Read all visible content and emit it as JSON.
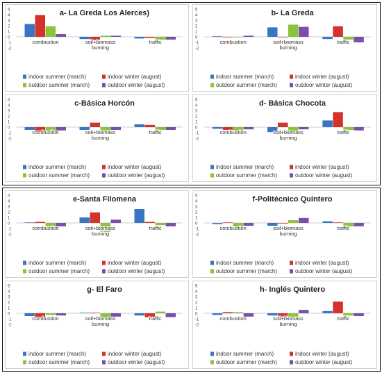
{
  "colors": {
    "indoor_summer": "#3a74c4",
    "indoor_winter": "#d6322c",
    "outdoor_summer": "#8ac43a",
    "outdoor_winter": "#7a4fa8"
  },
  "chart_data": [
    {
      "type": "bar",
      "title": "a- La Greda Los Alerces)",
      "categories": [
        "combustion",
        "soil+biomass burning",
        "traffic"
      ],
      "series": [
        {
          "name": "indoor summer (march)",
          "values": [
            2.3,
            -0.4,
            -0.3
          ]
        },
        {
          "name": "indoor winter (august)",
          "values": [
            3.9,
            -0.6,
            -0.2
          ]
        },
        {
          "name": "outdoor summer (march)",
          "values": [
            1.9,
            0.2,
            -0.5
          ]
        },
        {
          "name": "outdoor winter (august)",
          "values": [
            0.5,
            0.2,
            -0.5
          ]
        }
      ],
      "yticks": [
        "5",
        "4",
        "3",
        "2",
        "1",
        "0",
        "-1",
        "-2"
      ],
      "ylim": [
        -2,
        5
      ],
      "legend": "bottom"
    },
    {
      "type": "bar",
      "title": "b- La Greda",
      "categories": [
        "combustion",
        "soil+biomass burning",
        "traffic"
      ],
      "series": [
        {
          "name": "indoor summer (march)",
          "values": [
            0.1,
            1.7,
            -0.4
          ]
        },
        {
          "name": "indoor winter (august)",
          "values": [
            -0.1,
            -0.1,
            1.9
          ]
        },
        {
          "name": "outdoor summer (march)",
          "values": [
            -0.1,
            2.2,
            -0.5
          ]
        },
        {
          "name": "outdoor winter (august)",
          "values": [
            0.2,
            1.8,
            -1.0
          ]
        }
      ],
      "yticks": [
        "5",
        "4",
        "3",
        "2",
        "1",
        "0",
        "-1",
        "-2"
      ],
      "ylim": [
        -2,
        5
      ],
      "legend": "bottom"
    },
    {
      "type": "bar",
      "title": "c-Básica Horcón",
      "categories": [
        "combustion",
        "soil+biomass burning",
        "traffic"
      ],
      "series": [
        {
          "name": "indoor summer (march)",
          "values": [
            -0.5,
            -0.5,
            0.5
          ]
        },
        {
          "name": "indoor winter (august)",
          "values": [
            -0.8,
            0.8,
            0.4
          ]
        },
        {
          "name": "outdoor summer (march)",
          "values": [
            -1.0,
            -0.6,
            -0.5
          ]
        },
        {
          "name": "outdoor winter (august)",
          "values": [
            -0.6,
            -0.5,
            -0.5
          ]
        }
      ],
      "yticks": [
        "5",
        "4",
        "3",
        "2",
        "1",
        "0",
        "-1",
        "-2"
      ],
      "ylim": [
        -2,
        5
      ],
      "legend": "bottom"
    },
    {
      "type": "bar",
      "title": "d- Básica Chocota",
      "categories": [
        "combustion",
        "soil+biomass burning",
        "traffic"
      ],
      "series": [
        {
          "name": "indoor summer (march)",
          "values": [
            -0.3,
            -0.9,
            1.2
          ]
        },
        {
          "name": "indoor winter (august)",
          "values": [
            -0.5,
            0.8,
            2.7
          ]
        },
        {
          "name": "outdoor summer (march)",
          "values": [
            -0.6,
            -1.2,
            -0.5
          ]
        },
        {
          "name": "outdoor winter (august)",
          "values": [
            -0.4,
            -0.4,
            -0.6
          ]
        }
      ],
      "yticks": [
        "5",
        "4",
        "3",
        "2",
        "1",
        "0",
        "-1",
        "-2"
      ],
      "ylim": [
        -2,
        5
      ],
      "legend": "bottom"
    },
    {
      "type": "bar",
      "title": "e-Santa Filomena",
      "categories": [
        "combustion",
        "soil+biomass burning",
        "traffic"
      ],
      "series": [
        {
          "name": "indoor summer (march)",
          "values": [
            0.1,
            1.0,
            2.5
          ]
        },
        {
          "name": "indoor winter (august)",
          "values": [
            0.2,
            1.9,
            0.2
          ]
        },
        {
          "name": "outdoor summer (march)",
          "values": [
            -0.6,
            -1.6,
            -0.4
          ]
        },
        {
          "name": "outdoor winter (august)",
          "values": [
            -0.6,
            0.6,
            -0.6
          ]
        }
      ],
      "yticks": [
        "5",
        "4",
        "3",
        "2",
        "1",
        "0",
        "-1",
        "-2"
      ],
      "ylim": [
        -2,
        5
      ],
      "legend": "bottom"
    },
    {
      "type": "bar",
      "title": "f-Politécnico Quintero",
      "categories": [
        "combustion",
        "soil+biomass burning",
        "traffic"
      ],
      "series": [
        {
          "name": "indoor summer (march)",
          "values": [
            -0.2,
            -0.5,
            0.3
          ]
        },
        {
          "name": "indoor winter (august)",
          "values": [
            0.1,
            -0.1,
            0.1
          ]
        },
        {
          "name": "outdoor summer (march)",
          "values": [
            -0.7,
            0.5,
            -0.6
          ]
        },
        {
          "name": "outdoor winter (august)",
          "values": [
            -0.5,
            0.9,
            -0.6
          ]
        }
      ],
      "yticks": [
        "5",
        "4",
        "3",
        "2",
        "1",
        "0",
        "-1",
        "-2"
      ],
      "ylim": [
        -2,
        5
      ],
      "legend": "bottom"
    },
    {
      "type": "bar",
      "title": "g- El Faro",
      "categories": [
        "combustion",
        "soil+biomass burning",
        "traffic"
      ],
      "series": [
        {
          "name": "indoor summer (march)",
          "values": [
            -0.5,
            0.1,
            -0.4
          ]
        },
        {
          "name": "indoor winter (august)",
          "values": [
            -0.8,
            0.1,
            -0.7
          ]
        },
        {
          "name": "outdoor summer (march)",
          "values": [
            -0.3,
            -1.3,
            0.3
          ]
        },
        {
          "name": "outdoor winter (august)",
          "values": [
            -0.4,
            -0.6,
            -0.7
          ]
        }
      ],
      "yticks": [
        "5",
        "4",
        "3",
        "2",
        "1",
        "0",
        "-1",
        "-2"
      ],
      "ylim": [
        -2,
        5
      ],
      "legend": "bottom"
    },
    {
      "type": "bar",
      "title": "h- Inglés Quintero",
      "categories": [
        "combustion",
        "soil+biomass burning",
        "traffic"
      ],
      "series": [
        {
          "name": "indoor summer (march)",
          "values": [
            -0.3,
            -0.4,
            0.4
          ]
        },
        {
          "name": "indoor winter (august)",
          "values": [
            0.2,
            -0.6,
            2.1
          ]
        },
        {
          "name": "outdoor summer (march)",
          "values": [
            0.2,
            -0.6,
            -0.4
          ]
        },
        {
          "name": "outdoor winter (august)",
          "values": [
            -0.6,
            0.6,
            -0.5
          ]
        }
      ],
      "yticks": [
        "5",
        "4",
        "3",
        "2",
        "1",
        "0",
        "-1",
        "-2"
      ],
      "ylim": [
        -2,
        5
      ],
      "legend": "bottom"
    }
  ]
}
